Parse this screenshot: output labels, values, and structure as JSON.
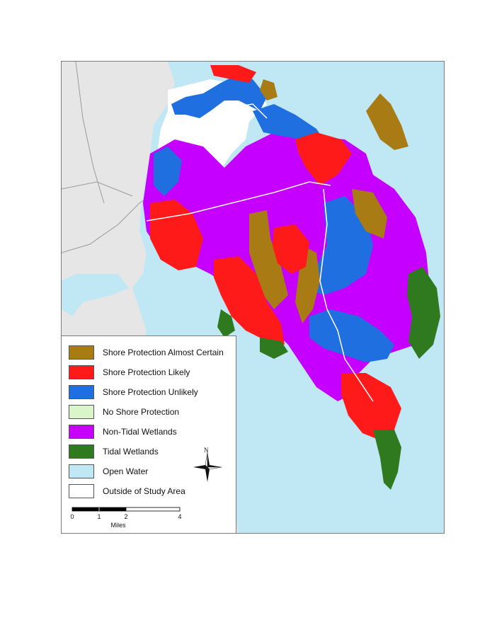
{
  "colors": {
    "water": "#bfe7f4",
    "outside_land": "#e6e6e6",
    "study_area_white": "#ffffff",
    "shore_almost_certain": "#a87b14",
    "shore_likely": "#ff1a1a",
    "shore_unlikely": "#1f6fe0",
    "no_shore": "#d9f5c9",
    "non_tidal_wetlands": "#c600ff",
    "tidal_wetlands": "#2f7a1e",
    "roads": "#9a9a9a"
  },
  "legend": {
    "items": [
      {
        "label": "Shore Protection Almost Certain",
        "color": "#a87b14"
      },
      {
        "label": "Shore Protection Likely",
        "color": "#ff1a1a"
      },
      {
        "label": "Shore Protection Unlikely",
        "color": "#1f6fe0"
      },
      {
        "label": "No Shore Protection",
        "color": "#d9f5c9"
      },
      {
        "label": "Non-Tidal Wetlands",
        "color": "#c600ff"
      },
      {
        "label": "Tidal Wetlands",
        "color": "#2f7a1e"
      },
      {
        "label": "Open Water",
        "color": "#bfe7f4"
      },
      {
        "label": "Outside of Study Area",
        "color": "#ffffff"
      }
    ]
  },
  "scale_bar": {
    "ticks": [
      "0",
      "1",
      "2",
      "4"
    ],
    "unit": "Miles"
  },
  "north_arrow": {
    "label": "N",
    "icon": "north-arrow-icon"
  }
}
